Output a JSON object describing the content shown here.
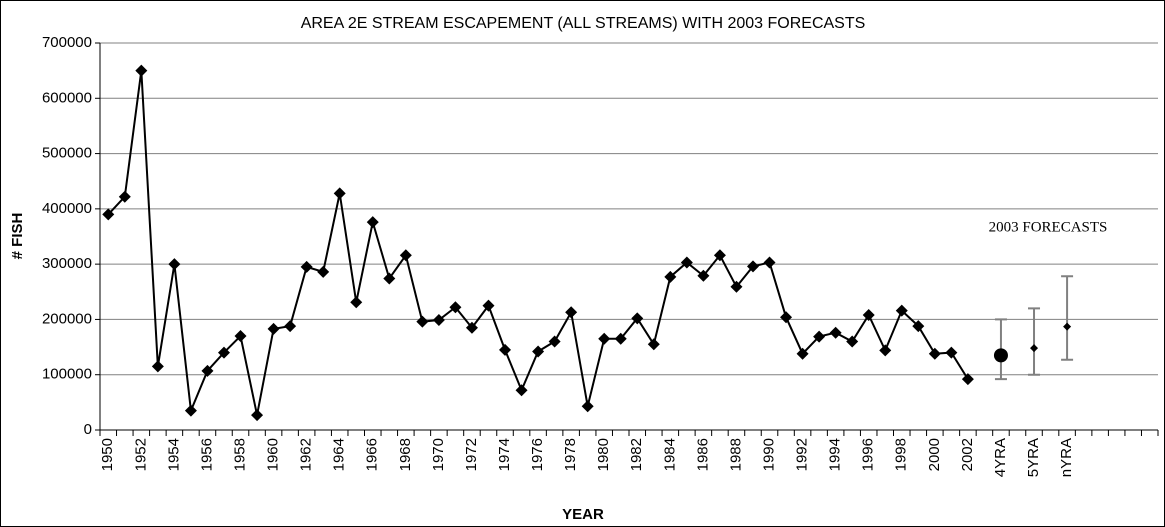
{
  "chart_data": {
    "type": "line",
    "title": "AREA 2E STREAM ESCAPEMENT (ALL STREAMS) WITH 2003 FORECASTS",
    "x_label": "YEAR",
    "y_label": "# FISH",
    "annotation": "2003 FORECASTS",
    "categories": [
      "1950",
      null,
      "1952",
      null,
      "1954",
      null,
      "1956",
      null,
      "1958",
      null,
      "1960",
      null,
      "1962",
      null,
      "1964",
      null,
      "1966",
      null,
      "1968",
      null,
      "1970",
      null,
      "1972",
      null,
      "1974",
      null,
      "1976",
      null,
      "1978",
      null,
      "1980",
      null,
      "1982",
      null,
      "1984",
      null,
      "1986",
      null,
      "1988",
      null,
      "1990",
      null,
      "1992",
      null,
      "1994",
      null,
      "1996",
      null,
      "1998",
      null,
      "2000",
      null,
      "2002",
      null,
      "4YRA",
      null,
      "5YRA",
      null,
      "nYRA",
      null,
      null,
      null,
      null,
      null
    ],
    "series": [
      {
        "color": "#000000",
        "marker": "diamond",
        "line": true,
        "values": [
          390000,
          422000,
          650000,
          115000,
          300000,
          35000,
          107000,
          140000,
          170000,
          27000,
          183000,
          188000,
          295000,
          286000,
          428000,
          231000,
          376000,
          274000,
          316000,
          196000,
          199000,
          222000,
          185000,
          225000,
          145000,
          72000,
          142000,
          160000,
          213000,
          43000,
          165000,
          165000,
          202000,
          155000,
          277000,
          303000,
          279000,
          316000,
          259000,
          296000,
          303000,
          204000,
          138000,
          169000,
          176000,
          160000,
          208000,
          144000,
          216000,
          188000,
          138000,
          140000,
          92000,
          null,
          null,
          null,
          null,
          null,
          null,
          null,
          null,
          null,
          null,
          null
        ]
      },
      {
        "color": "#000000",
        "error_color": "#808080",
        "line": false,
        "markers": [
          null,
          null,
          null,
          null,
          null,
          null,
          null,
          null,
          null,
          null,
          null,
          null,
          null,
          null,
          null,
          null,
          null,
          null,
          null,
          null,
          null,
          null,
          null,
          null,
          null,
          null,
          null,
          null,
          null,
          null,
          null,
          null,
          null,
          null,
          null,
          null,
          null,
          null,
          null,
          null,
          null,
          null,
          null,
          null,
          null,
          null,
          null,
          null,
          null,
          null,
          null,
          null,
          null,
          null,
          "circle",
          null,
          "diamond-small",
          null,
          "diamond-small",
          null,
          null,
          null,
          null,
          null
        ],
        "values": [
          null,
          null,
          null,
          null,
          null,
          null,
          null,
          null,
          null,
          null,
          null,
          null,
          null,
          null,
          null,
          null,
          null,
          null,
          null,
          null,
          null,
          null,
          null,
          null,
          null,
          null,
          null,
          null,
          null,
          null,
          null,
          null,
          null,
          null,
          null,
          null,
          null,
          null,
          null,
          null,
          null,
          null,
          null,
          null,
          null,
          null,
          null,
          null,
          null,
          null,
          null,
          null,
          null,
          null,
          135000,
          null,
          148000,
          null,
          187000,
          null,
          null,
          null,
          null,
          null
        ],
        "lower": [
          null,
          null,
          null,
          null,
          null,
          null,
          null,
          null,
          null,
          null,
          null,
          null,
          null,
          null,
          null,
          null,
          null,
          null,
          null,
          null,
          null,
          null,
          null,
          null,
          null,
          null,
          null,
          null,
          null,
          null,
          null,
          null,
          null,
          null,
          null,
          null,
          null,
          null,
          null,
          null,
          null,
          null,
          null,
          null,
          null,
          null,
          null,
          null,
          null,
          null,
          null,
          null,
          null,
          null,
          92000,
          null,
          100000,
          null,
          127000,
          null,
          null,
          null,
          null,
          null
        ],
        "upper": [
          null,
          null,
          null,
          null,
          null,
          null,
          null,
          null,
          null,
          null,
          null,
          null,
          null,
          null,
          null,
          null,
          null,
          null,
          null,
          null,
          null,
          null,
          null,
          null,
          null,
          null,
          null,
          null,
          null,
          null,
          null,
          null,
          null,
          null,
          null,
          null,
          null,
          null,
          null,
          null,
          null,
          null,
          null,
          null,
          null,
          null,
          null,
          null,
          null,
          null,
          null,
          null,
          null,
          null,
          200000,
          null,
          220000,
          null,
          278000,
          null,
          null,
          null,
          null,
          null
        ]
      }
    ],
    "ylim": [
      0,
      700000
    ],
    "yticks": [
      0,
      100000,
      200000,
      300000,
      400000,
      500000,
      600000,
      700000
    ],
    "grid": true
  }
}
